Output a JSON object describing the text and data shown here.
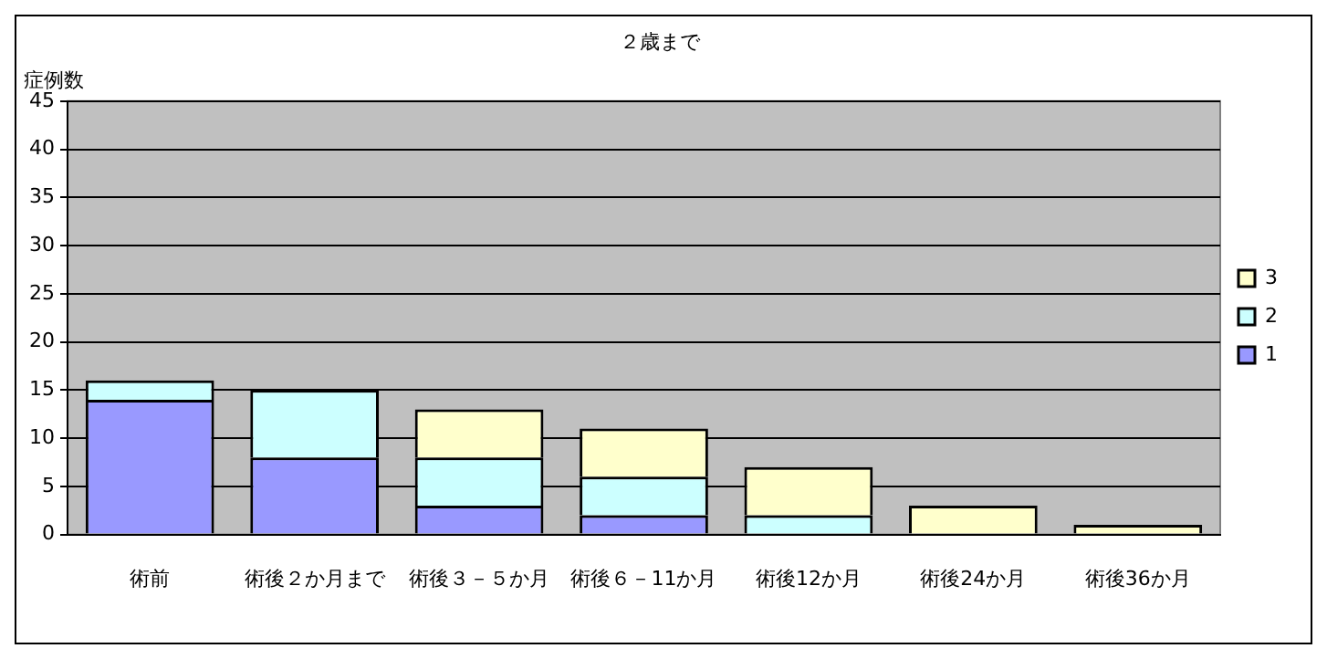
{
  "chart_data": {
    "type": "bar",
    "title": "２歳まで",
    "ylabel": "症例数",
    "stacked": true,
    "categories": [
      "術前",
      "術後２か月まで",
      "術後３－５か月",
      "術後６－11か月",
      "術後12か月",
      "術後24か月",
      "術後36か月"
    ],
    "series": [
      {
        "name": "1",
        "color": "#9999ff",
        "values": [
          14,
          8,
          3,
          2,
          0,
          0,
          0
        ]
      },
      {
        "name": "2",
        "color": "#ccffff",
        "values": [
          2,
          7,
          5,
          4,
          2,
          0,
          0
        ]
      },
      {
        "name": "3",
        "color": "#ffffcc",
        "values": [
          0,
          0,
          5,
          5,
          5,
          3,
          1
        ]
      }
    ],
    "ylim": [
      0,
      45
    ],
    "yticks": [
      0,
      5,
      10,
      15,
      20,
      25,
      30,
      35,
      40,
      45
    ],
    "grid": "y",
    "legend": "right"
  }
}
